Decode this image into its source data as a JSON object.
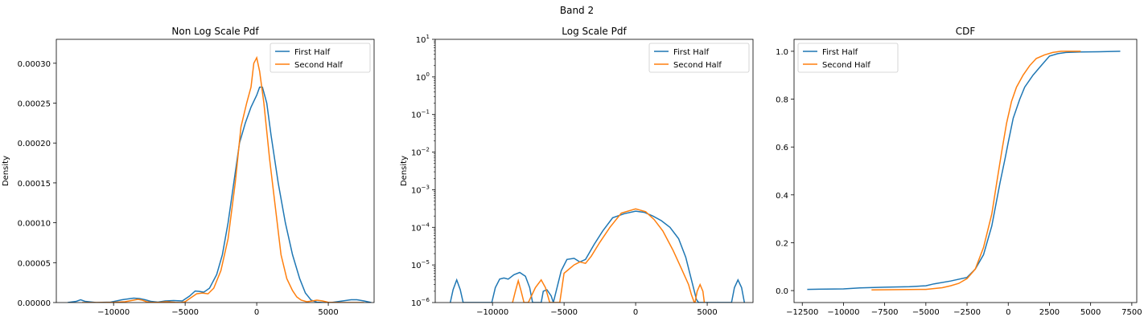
{
  "figure": {
    "suptitle": "Band 2"
  },
  "colors": {
    "first": "#1f77b4",
    "second": "#ff7f0e"
  },
  "chart_data": [
    {
      "type": "line",
      "title": "Non Log Scale Pdf",
      "xlabel": "",
      "ylabel": "Density",
      "xlim": [
        -14000,
        8200
      ],
      "ylim": [
        0,
        0.00033
      ],
      "yscale": "linear",
      "x_ticks": [
        -10000,
        -5000,
        0,
        5000
      ],
      "x_tick_labels": [
        "−10000",
        "−5000",
        "0",
        "5000"
      ],
      "y_ticks": [
        0,
        5e-05,
        0.0001,
        0.00015,
        0.0002,
        0.00025,
        0.0003
      ],
      "y_tick_labels": [
        "0.00000",
        "0.00005",
        "0.00010",
        "0.00015",
        "0.00020",
        "0.00025",
        "0.00030"
      ],
      "legend": {
        "position": "top-right",
        "entries": [
          "First Half",
          "Second Half"
        ]
      },
      "series": [
        {
          "name": "First Half",
          "x": [
            -13200,
            -12600,
            -12300,
            -12000,
            -11200,
            -10200,
            -9400,
            -9000,
            -8600,
            -8200,
            -7800,
            -7400,
            -6900,
            -6400,
            -5800,
            -5200,
            -4700,
            -4300,
            -4000,
            -3700,
            -3300,
            -2800,
            -2400,
            -2000,
            -1600,
            -1200,
            -800,
            -400,
            0,
            200,
            400,
            700,
            1000,
            1500,
            2000,
            2500,
            3000,
            3400,
            3800,
            4200,
            4600,
            5200,
            6000,
            6600,
            7000,
            7500,
            8000
          ],
          "y": [
            0,
            1.5e-06,
            3.5e-06,
            1.5e-06,
            0,
            5e-07,
            3.5e-06,
            4.5e-06,
            5.5e-06,
            5e-06,
            3.5e-06,
            1.5e-06,
            5e-07,
            2e-06,
            2.5e-06,
            2e-06,
            8e-06,
            1.45e-05,
            1.4e-05,
            1.3e-05,
            1.8e-05,
            3.5e-05,
            6e-05,
            0.0001,
            0.00015,
            0.0002,
            0.000225,
            0.000245,
            0.00026,
            0.00027,
            0.00027,
            0.00025,
            0.00021,
            0.00015,
            0.0001,
            6e-05,
            3e-05,
            1.2e-05,
            3e-06,
            5e-07,
            0,
            0,
            2e-06,
            3.5e-06,
            3.5e-06,
            2e-06,
            0
          ]
        },
        {
          "name": "Second Half",
          "x": [
            -12200,
            -11000,
            -10000,
            -9200,
            -8600,
            -8300,
            -8000,
            -7700,
            -7400,
            -6800,
            -6300,
            -5700,
            -5300,
            -5000,
            -4600,
            -4200,
            -3800,
            -3400,
            -3000,
            -2500,
            -2000,
            -1500,
            -1100,
            -700,
            -400,
            -200,
            0,
            200,
            500,
            900,
            1300,
            1700,
            2100,
            2500,
            2800,
            3100,
            3500,
            3900,
            4200,
            4600,
            5000,
            6000,
            7500
          ],
          "y": [
            0,
            0,
            3e-07,
            1e-06,
            3e-06,
            4e-06,
            3e-06,
            1e-06,
            3e-07,
            3e-07,
            1e-06,
            3e-07,
            0,
            1e-06,
            6e-06,
            1.1e-05,
            1.2e-05,
            1.1e-05,
            1.8e-05,
            4e-05,
            8e-05,
            0.00015,
            0.00022,
            0.00025,
            0.00027,
            0.0003,
            0.000307,
            0.00029,
            0.00025,
            0.00018,
            0.00012,
            6e-05,
            3e-05,
            1.5e-05,
            7e-06,
            3e-06,
            1e-06,
            2e-06,
            3e-06,
            2e-06,
            3e-07,
            0,
            0
          ]
        }
      ]
    },
    {
      "type": "line",
      "title": "Log Scale Pdf",
      "xlabel": "",
      "ylabel": "Density",
      "xlim": [
        -14000,
        8200
      ],
      "ylim": [
        1e-06,
        10
      ],
      "yscale": "log",
      "x_ticks": [
        -10000,
        -5000,
        0,
        5000
      ],
      "x_tick_labels": [
        "−10000",
        "−5000",
        "0",
        "5000"
      ],
      "y_ticks": [
        1e-06,
        1e-05,
        0.0001,
        0.001,
        0.01,
        0.1,
        1,
        10
      ],
      "y_tick_bases": [
        "10",
        "10",
        "10",
        "10",
        "10",
        "10",
        "10",
        "10"
      ],
      "y_tick_exps": [
        "−6",
        "−5",
        "−4",
        "−3",
        "−2",
        "−1",
        "0",
        "1"
      ],
      "legend": {
        "position": "top-right",
        "entries": [
          "First Half",
          "Second Half"
        ]
      },
      "series": [
        {
          "name": "First Half",
          "x": [
            -12950,
            -12750,
            -12500,
            -12250,
            -12050,
            -11000,
            -10050,
            -9800,
            -9500,
            -9200,
            -8900,
            -8500,
            -8100,
            -7700,
            -7400,
            -7200,
            -6600,
            -6450,
            -6200,
            -5900,
            -5750,
            -5200,
            -4800,
            -4300,
            -3900,
            -3500,
            -2900,
            -2300,
            -1600,
            -800,
            0,
            600,
            1200,
            1800,
            2400,
            3000,
            3500,
            3900,
            4250,
            4400,
            6700,
            6900,
            7150,
            7400,
            7600
          ],
          "y": [
            1e-06,
            2.2e-06,
            4e-06,
            2.2e-06,
            1e-06,
            1e-06,
            1e-06,
            2.5e-06,
            4.2e-06,
            4.5e-06,
            4.2e-06,
            5.5e-06,
            6.3e-06,
            5e-06,
            2.5e-06,
            1e-06,
            1e-06,
            2e-06,
            2.2e-06,
            1.5e-06,
            1e-06,
            7e-06,
            1.4e-05,
            1.5e-05,
            1.2e-05,
            1.4e-05,
            3.5e-05,
            8e-05,
            0.00018,
            0.00023,
            0.00027,
            0.00025,
            0.0002,
            0.00015,
            0.0001,
            5e-05,
            1.6e-05,
            4e-06,
            1.2e-06,
            1e-06,
            1e-06,
            2.5e-06,
            4e-06,
            2.5e-06,
            1e-06
          ]
        },
        {
          "name": "Second Half",
          "x": [
            -8600,
            -8400,
            -8200,
            -8000,
            -7800,
            -7500,
            -7000,
            -6600,
            -6300,
            -6000,
            -5300,
            -5000,
            -4700,
            -4300,
            -3900,
            -3500,
            -3100,
            -2500,
            -1800,
            -1000,
            0,
            700,
            1300,
            1900,
            2600,
            3200,
            3700,
            3900,
            4100,
            4150,
            4300,
            4500,
            4700,
            4800
          ],
          "y": [
            1e-06,
            2e-06,
            3.8e-06,
            2e-06,
            1e-06,
            1e-06,
            2.5e-06,
            4e-06,
            2.5e-06,
            1e-06,
            1e-06,
            6e-06,
            7.5e-06,
            1e-05,
            1.2e-05,
            1.1e-05,
            1.7e-05,
            4e-05,
            0.0001,
            0.00024,
            0.00031,
            0.00026,
            0.00016,
            8e-05,
            2.5e-05,
            8e-06,
            3e-06,
            1.6e-06,
            1e-06,
            1e-06,
            2e-06,
            3e-06,
            2e-06,
            1e-06
          ]
        }
      ]
    },
    {
      "type": "line",
      "title": "CDF",
      "xlabel": "",
      "ylabel": "",
      "xlim": [
        -13000,
        7800
      ],
      "ylim": [
        -0.05,
        1.05
      ],
      "yscale": "linear",
      "x_ticks": [
        -12500,
        -10000,
        -7500,
        -5000,
        -2500,
        0,
        2500,
        5000,
        7500
      ],
      "x_tick_labels": [
        "−12500",
        "−10000",
        "−7500",
        "−5000",
        "−2500",
        "0",
        "2500",
        "5000",
        "7500"
      ],
      "y_ticks": [
        0,
        0.2,
        0.4,
        0.6,
        0.8,
        1.0
      ],
      "y_tick_labels": [
        "0.0",
        "0.2",
        "0.4",
        "0.6",
        "0.8",
        "1.0"
      ],
      "legend": {
        "position": "top-left",
        "entries": [
          "First Half",
          "Second Half"
        ]
      },
      "series": [
        {
          "name": "First Half",
          "x": [
            -12200,
            -10000,
            -9000,
            -7500,
            -6000,
            -5000,
            -4500,
            -3500,
            -2500,
            -2000,
            -1500,
            -1000,
            -500,
            -200,
            0,
            300,
            700,
            1000,
            1500,
            2000,
            2500,
            3000,
            3500,
            4400,
            5500,
            6800
          ],
          "y": [
            0.005,
            0.007,
            0.011,
            0.014,
            0.016,
            0.02,
            0.028,
            0.04,
            0.055,
            0.09,
            0.15,
            0.27,
            0.45,
            0.55,
            0.62,
            0.72,
            0.8,
            0.85,
            0.9,
            0.94,
            0.98,
            0.99,
            0.995,
            0.997,
            0.998,
            1.0
          ]
        },
        {
          "name": "Second Half",
          "x": [
            -8300,
            -5000,
            -4000,
            -3500,
            -3000,
            -2500,
            -2000,
            -1500,
            -1000,
            -700,
            -400,
            -100,
            200,
            500,
            900,
            1300,
            1700,
            2200,
            2700,
            3200,
            3600,
            4400
          ],
          "y": [
            0.003,
            0.005,
            0.012,
            0.02,
            0.03,
            0.05,
            0.09,
            0.18,
            0.32,
            0.45,
            0.58,
            0.7,
            0.79,
            0.85,
            0.9,
            0.94,
            0.97,
            0.985,
            0.995,
            1.0,
            1.0,
            1.0
          ]
        }
      ]
    }
  ]
}
